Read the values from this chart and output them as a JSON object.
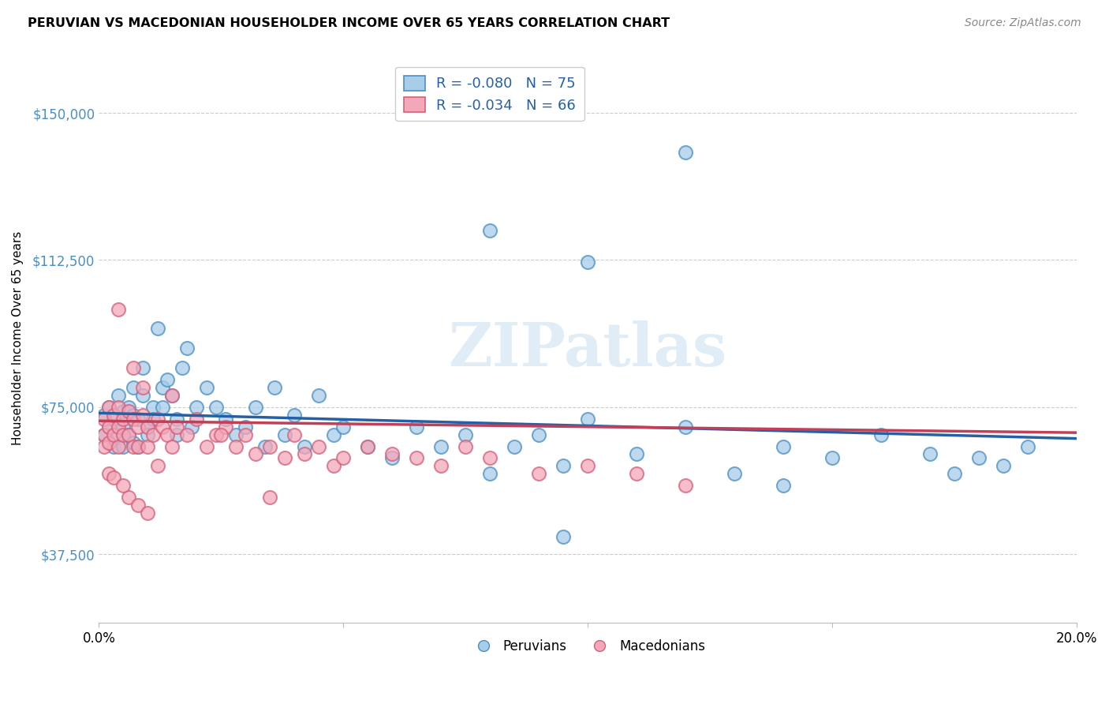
{
  "title": "PERUVIAN VS MACEDONIAN HOUSEHOLDER INCOME OVER 65 YEARS CORRELATION CHART",
  "source": "Source: ZipAtlas.com",
  "ylabel": "Householder Income Over 65 years",
  "xlim": [
    0.0,
    0.2
  ],
  "ylim": [
    20000,
    165000
  ],
  "yticks": [
    37500,
    75000,
    112500,
    150000
  ],
  "ytick_labels": [
    "$37,500",
    "$75,000",
    "$112,500",
    "$150,000"
  ],
  "legend_blue_r": "R = -0.080",
  "legend_blue_n": "N = 75",
  "legend_pink_r": "R = -0.034",
  "legend_pink_n": "N = 66",
  "blue_color": "#a8cde8",
  "pink_color": "#f4a7b9",
  "blue_edge_color": "#4a90c4",
  "pink_edge_color": "#d4607a",
  "blue_line_color": "#2660a4",
  "pink_line_color": "#c0405a",
  "ytick_color": "#4a90c4",
  "watermark": "ZIPatlas",
  "blue_scatter_x": [
    0.001,
    0.001,
    0.002,
    0.002,
    0.003,
    0.003,
    0.004,
    0.004,
    0.005,
    0.005,
    0.005,
    0.006,
    0.006,
    0.007,
    0.007,
    0.007,
    0.008,
    0.008,
    0.009,
    0.009,
    0.01,
    0.01,
    0.011,
    0.011,
    0.012,
    0.013,
    0.013,
    0.014,
    0.015,
    0.016,
    0.016,
    0.017,
    0.018,
    0.019,
    0.02,
    0.022,
    0.024,
    0.026,
    0.028,
    0.03,
    0.032,
    0.034,
    0.036,
    0.038,
    0.04,
    0.042,
    0.045,
    0.048,
    0.05,
    0.055,
    0.06,
    0.065,
    0.07,
    0.075,
    0.08,
    0.085,
    0.09,
    0.095,
    0.1,
    0.11,
    0.12,
    0.13,
    0.14,
    0.15,
    0.16,
    0.17,
    0.175,
    0.18,
    0.185,
    0.19,
    0.12,
    0.08,
    0.1,
    0.14,
    0.095
  ],
  "blue_scatter_y": [
    73000,
    68000,
    75000,
    70000,
    72000,
    65000,
    78000,
    68000,
    74000,
    70000,
    65000,
    75000,
    68000,
    80000,
    73000,
    66000,
    72000,
    65000,
    85000,
    78000,
    70000,
    68000,
    75000,
    72000,
    95000,
    80000,
    75000,
    82000,
    78000,
    72000,
    68000,
    85000,
    90000,
    70000,
    75000,
    80000,
    75000,
    72000,
    68000,
    70000,
    75000,
    65000,
    80000,
    68000,
    73000,
    65000,
    78000,
    68000,
    70000,
    65000,
    62000,
    70000,
    65000,
    68000,
    58000,
    65000,
    68000,
    60000,
    72000,
    63000,
    70000,
    58000,
    65000,
    62000,
    68000,
    63000,
    58000,
    62000,
    60000,
    65000,
    140000,
    120000,
    112000,
    55000,
    42000
  ],
  "pink_scatter_x": [
    0.001,
    0.001,
    0.001,
    0.002,
    0.002,
    0.002,
    0.003,
    0.003,
    0.004,
    0.004,
    0.004,
    0.005,
    0.005,
    0.006,
    0.006,
    0.007,
    0.007,
    0.008,
    0.008,
    0.009,
    0.01,
    0.01,
    0.011,
    0.012,
    0.013,
    0.014,
    0.015,
    0.016,
    0.018,
    0.02,
    0.022,
    0.024,
    0.026,
    0.028,
    0.03,
    0.032,
    0.035,
    0.038,
    0.04,
    0.042,
    0.045,
    0.048,
    0.05,
    0.055,
    0.06,
    0.065,
    0.07,
    0.075,
    0.08,
    0.09,
    0.1,
    0.11,
    0.12,
    0.002,
    0.003,
    0.006,
    0.008,
    0.01,
    0.012,
    0.005,
    0.004,
    0.007,
    0.009,
    0.015,
    0.025,
    0.035
  ],
  "pink_scatter_y": [
    72000,
    68000,
    65000,
    75000,
    70000,
    66000,
    73000,
    68000,
    75000,
    70000,
    65000,
    72000,
    68000,
    74000,
    68000,
    72000,
    65000,
    70000,
    65000,
    73000,
    70000,
    65000,
    68000,
    72000,
    70000,
    68000,
    65000,
    70000,
    68000,
    72000,
    65000,
    68000,
    70000,
    65000,
    68000,
    63000,
    65000,
    62000,
    68000,
    63000,
    65000,
    60000,
    62000,
    65000,
    63000,
    62000,
    60000,
    65000,
    62000,
    58000,
    60000,
    58000,
    55000,
    58000,
    57000,
    52000,
    50000,
    48000,
    60000,
    55000,
    100000,
    85000,
    80000,
    78000,
    68000,
    52000
  ]
}
